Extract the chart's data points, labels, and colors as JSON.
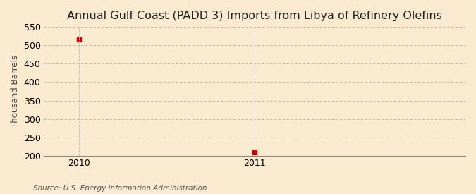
{
  "title": "Annual Gulf Coast (PADD 3) Imports from Libya of Refinery Olefins",
  "ylabel": "Thousand Barrels",
  "source": "Source: U.S. Energy Information Administration",
  "x_values": [
    2010,
    2011
  ],
  "y_values": [
    515,
    210
  ],
  "ylim": [
    200,
    550
  ],
  "yticks": [
    200,
    250,
    300,
    350,
    400,
    450,
    500,
    550
  ],
  "xticks": [
    2010,
    2011
  ],
  "xlim": [
    2009.8,
    2012.2
  ],
  "background_color": "#faebd0",
  "marker_color": "#cc0000",
  "grid_color": "#aaaaaa",
  "vline_color": "#bbbbbb",
  "title_fontsize": 11.5,
  "label_fontsize": 8.5,
  "tick_fontsize": 9,
  "source_fontsize": 7.5
}
